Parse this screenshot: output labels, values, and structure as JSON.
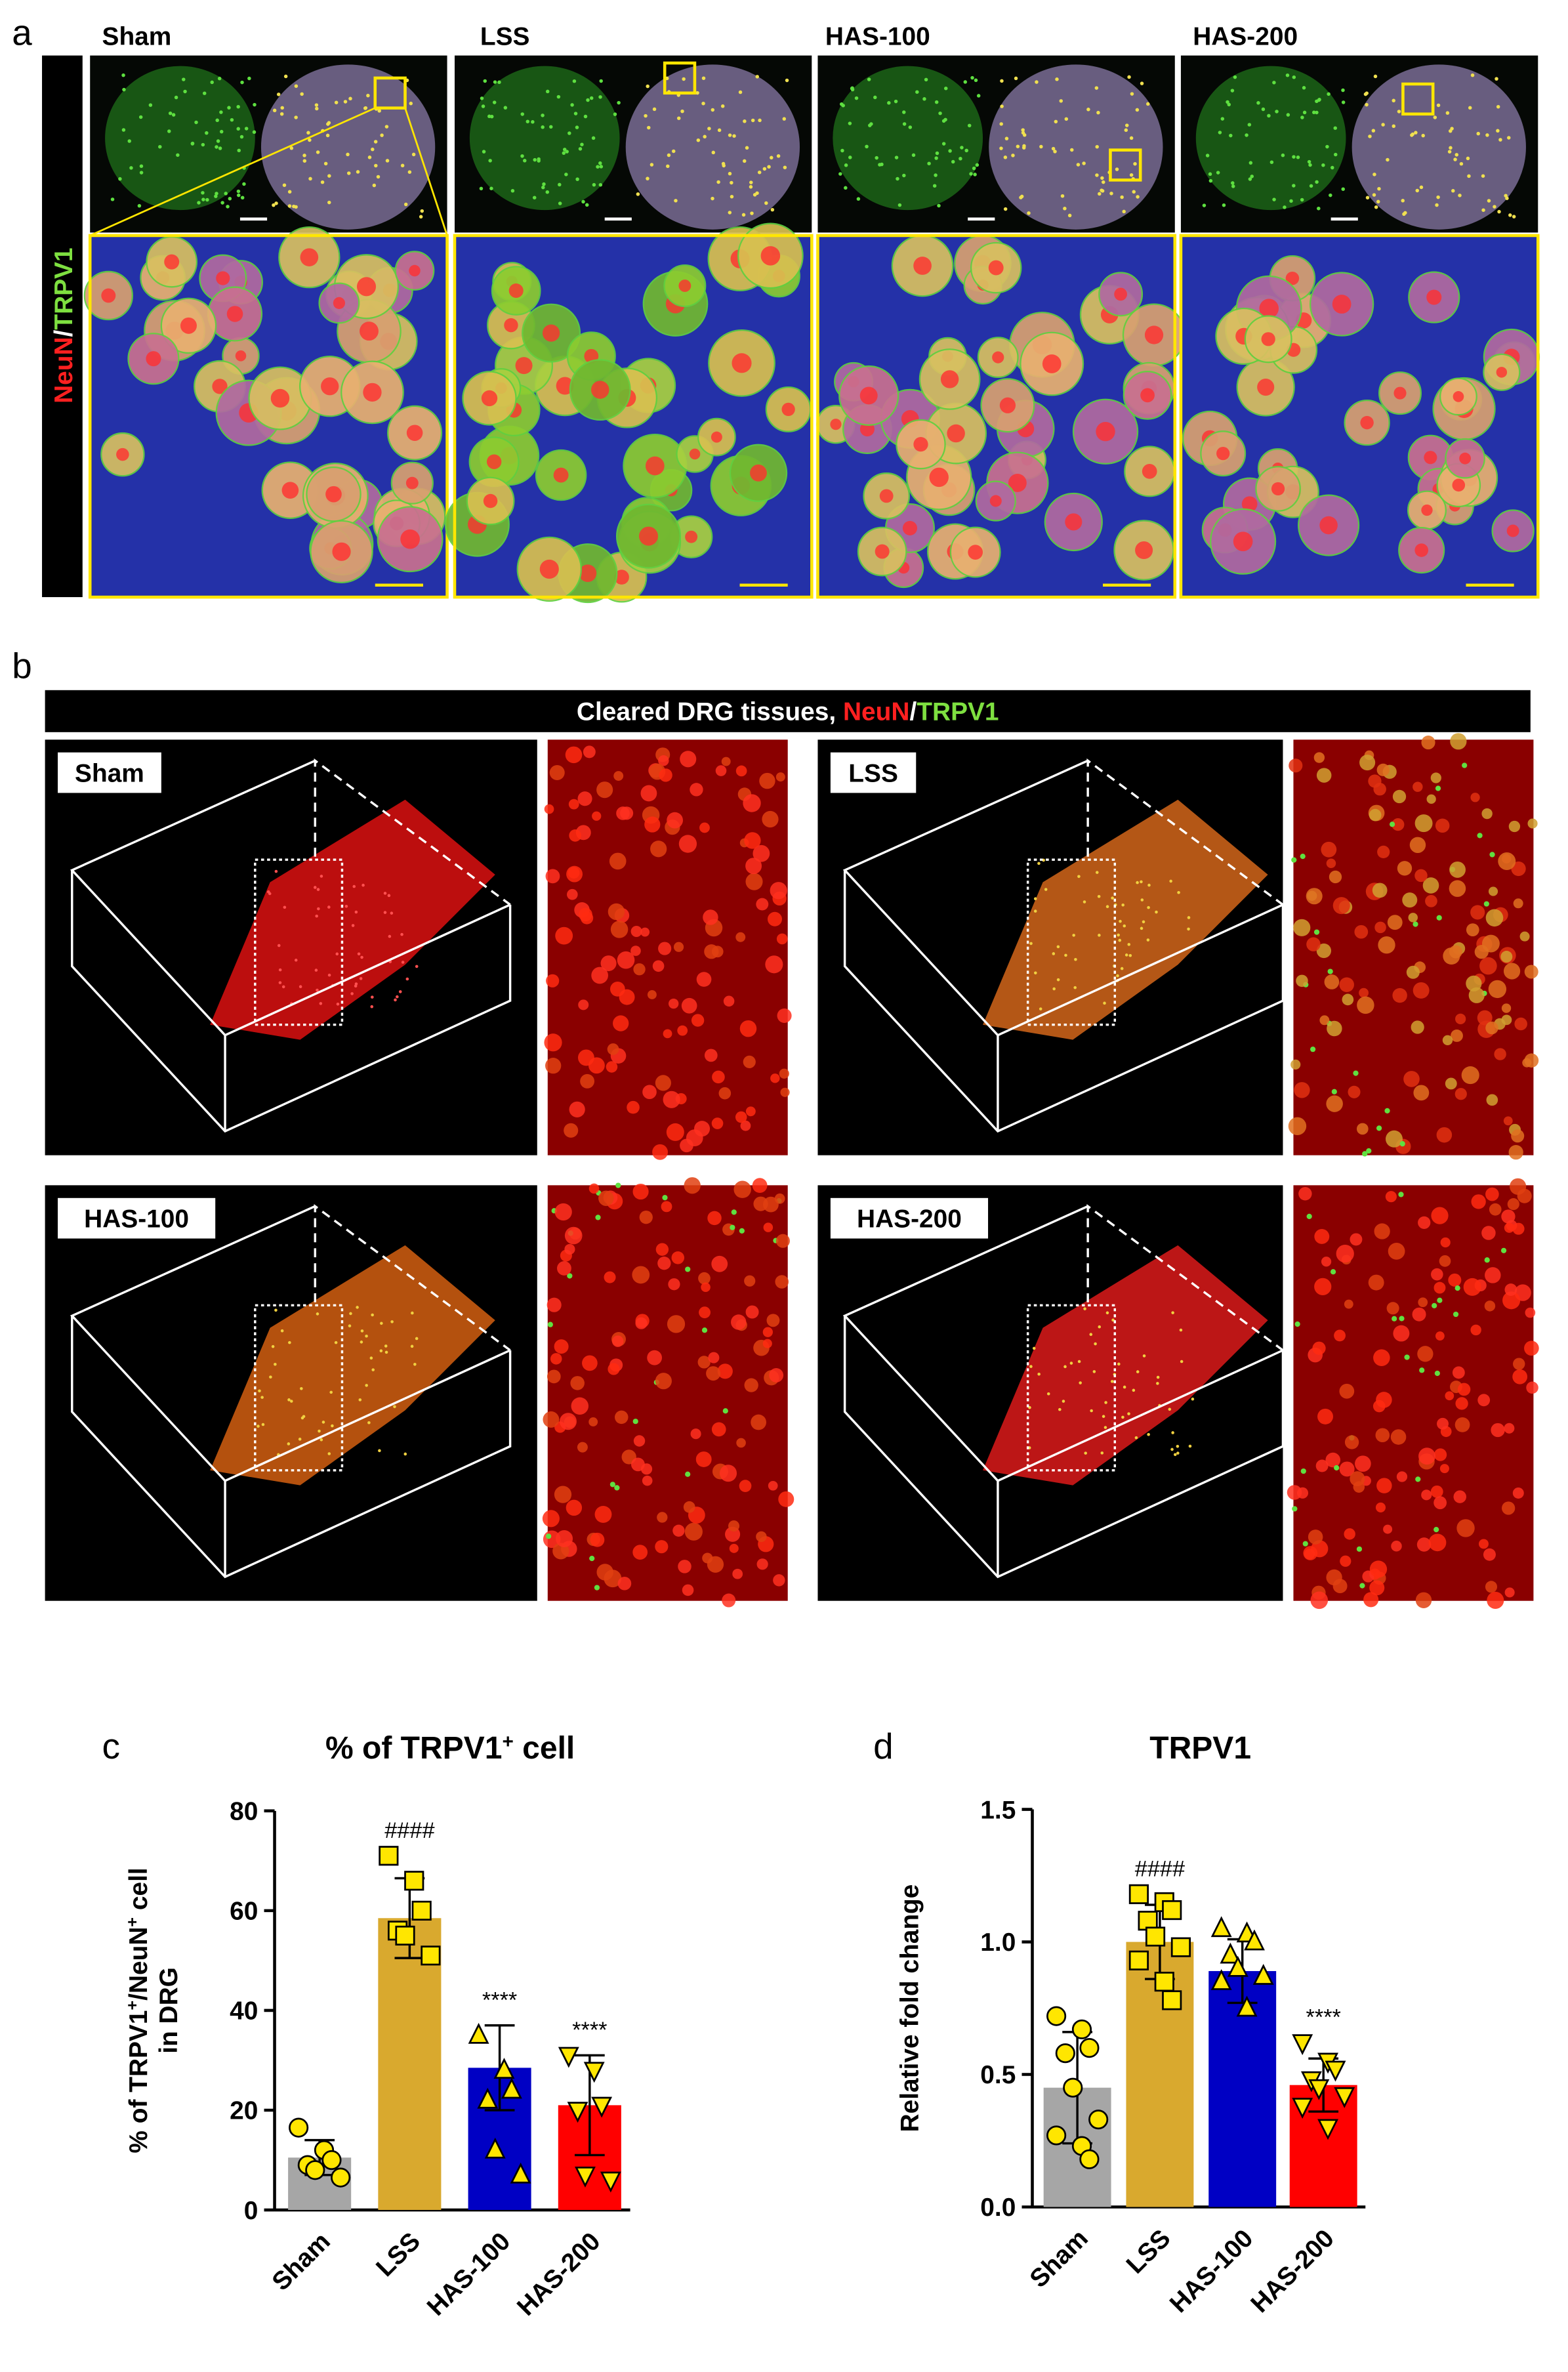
{
  "panel_a": {
    "label": "a",
    "stain": [
      "NeuN",
      "/",
      "TRPV1"
    ],
    "groups": [
      "Sham",
      "LSS",
      "HAS-100",
      "HAS-200"
    ]
  },
  "panel_b": {
    "label": "b",
    "header": [
      "Cleared DRG tissues, ",
      "NeuN",
      "/",
      "TRPV1"
    ],
    "groups": [
      "Sham",
      "LSS",
      "HAS-100",
      "HAS-200"
    ]
  },
  "chart_data": [
    {
      "type": "bar",
      "panel": "c",
      "title": [
        "% of TRPV1",
        "+",
        " cell"
      ],
      "ylabel": [
        "% of TRPV1",
        "+",
        "/NeuN",
        "+",
        " cell"
      ],
      "ylabel2": "in DRG",
      "categories": [
        "Sham",
        "LSS",
        "HAS-100",
        "HAS-200"
      ],
      "values": [
        10.5,
        58.5,
        28.5,
        21
      ],
      "errors": [
        3.5,
        8,
        8.5,
        10
      ],
      "colors": [
        "#a6a6a6",
        "#d9a92e",
        "#0000c4",
        "#ff0000"
      ],
      "markers": [
        "circle",
        "square",
        "triangle-up",
        "triangle-down"
      ],
      "point_color": "#ffe600",
      "points": [
        [
          16.5,
          12,
          10,
          9,
          8,
          6.5
        ],
        [
          71,
          66,
          60,
          56,
          55,
          51
        ],
        [
          35,
          28,
          24,
          22,
          12,
          7
        ],
        [
          31,
          28,
          21,
          20,
          7,
          6
        ]
      ],
      "annotations": [
        {
          "category": "LSS",
          "text": "####"
        },
        {
          "category": "HAS-100",
          "text": "****"
        },
        {
          "category": "HAS-200",
          "text": "****"
        }
      ],
      "ylim": [
        0,
        80
      ],
      "yticks": [
        0,
        20,
        40,
        60,
        80
      ]
    },
    {
      "type": "bar",
      "panel": "d",
      "title": [
        "TRPV1"
      ],
      "ylabel": [
        "Relative fold change"
      ],
      "categories": [
        "Sham",
        "LSS",
        "HAS-100",
        "HAS-200"
      ],
      "values": [
        0.45,
        1.0,
        0.89,
        0.46
      ],
      "errors": [
        0.21,
        0.14,
        0.12,
        0.1
      ],
      "colors": [
        "#a6a6a6",
        "#d9a92e",
        "#0000c4",
        "#ff0000"
      ],
      "markers": [
        "circle",
        "square",
        "triangle-up",
        "triangle-down"
      ],
      "point_color": "#ffe600",
      "points": [
        [
          0.72,
          0.67,
          0.6,
          0.58,
          0.45,
          0.33,
          0.27,
          0.23,
          0.18
        ],
        [
          1.18,
          1.15,
          1.12,
          1.08,
          1.02,
          0.98,
          0.93,
          0.85,
          0.78
        ],
        [
          1.05,
          1.03,
          1.0,
          0.95,
          0.9,
          0.87,
          0.85,
          0.75
        ],
        [
          0.62,
          0.55,
          0.52,
          0.48,
          0.45,
          0.42,
          0.38,
          0.3
        ]
      ],
      "annotations": [
        {
          "category": "LSS",
          "text": "####"
        },
        {
          "category": "HAS-200",
          "text": "****"
        }
      ],
      "ylim": [
        0,
        1.5
      ],
      "yticks": [
        {
          "value": 0,
          "label": "0.0"
        },
        {
          "value": 0.5,
          "label": "0.5"
        },
        {
          "value": 1,
          "label": "1.0"
        },
        {
          "value": 1.5,
          "label": "1.5"
        }
      ]
    }
  ]
}
